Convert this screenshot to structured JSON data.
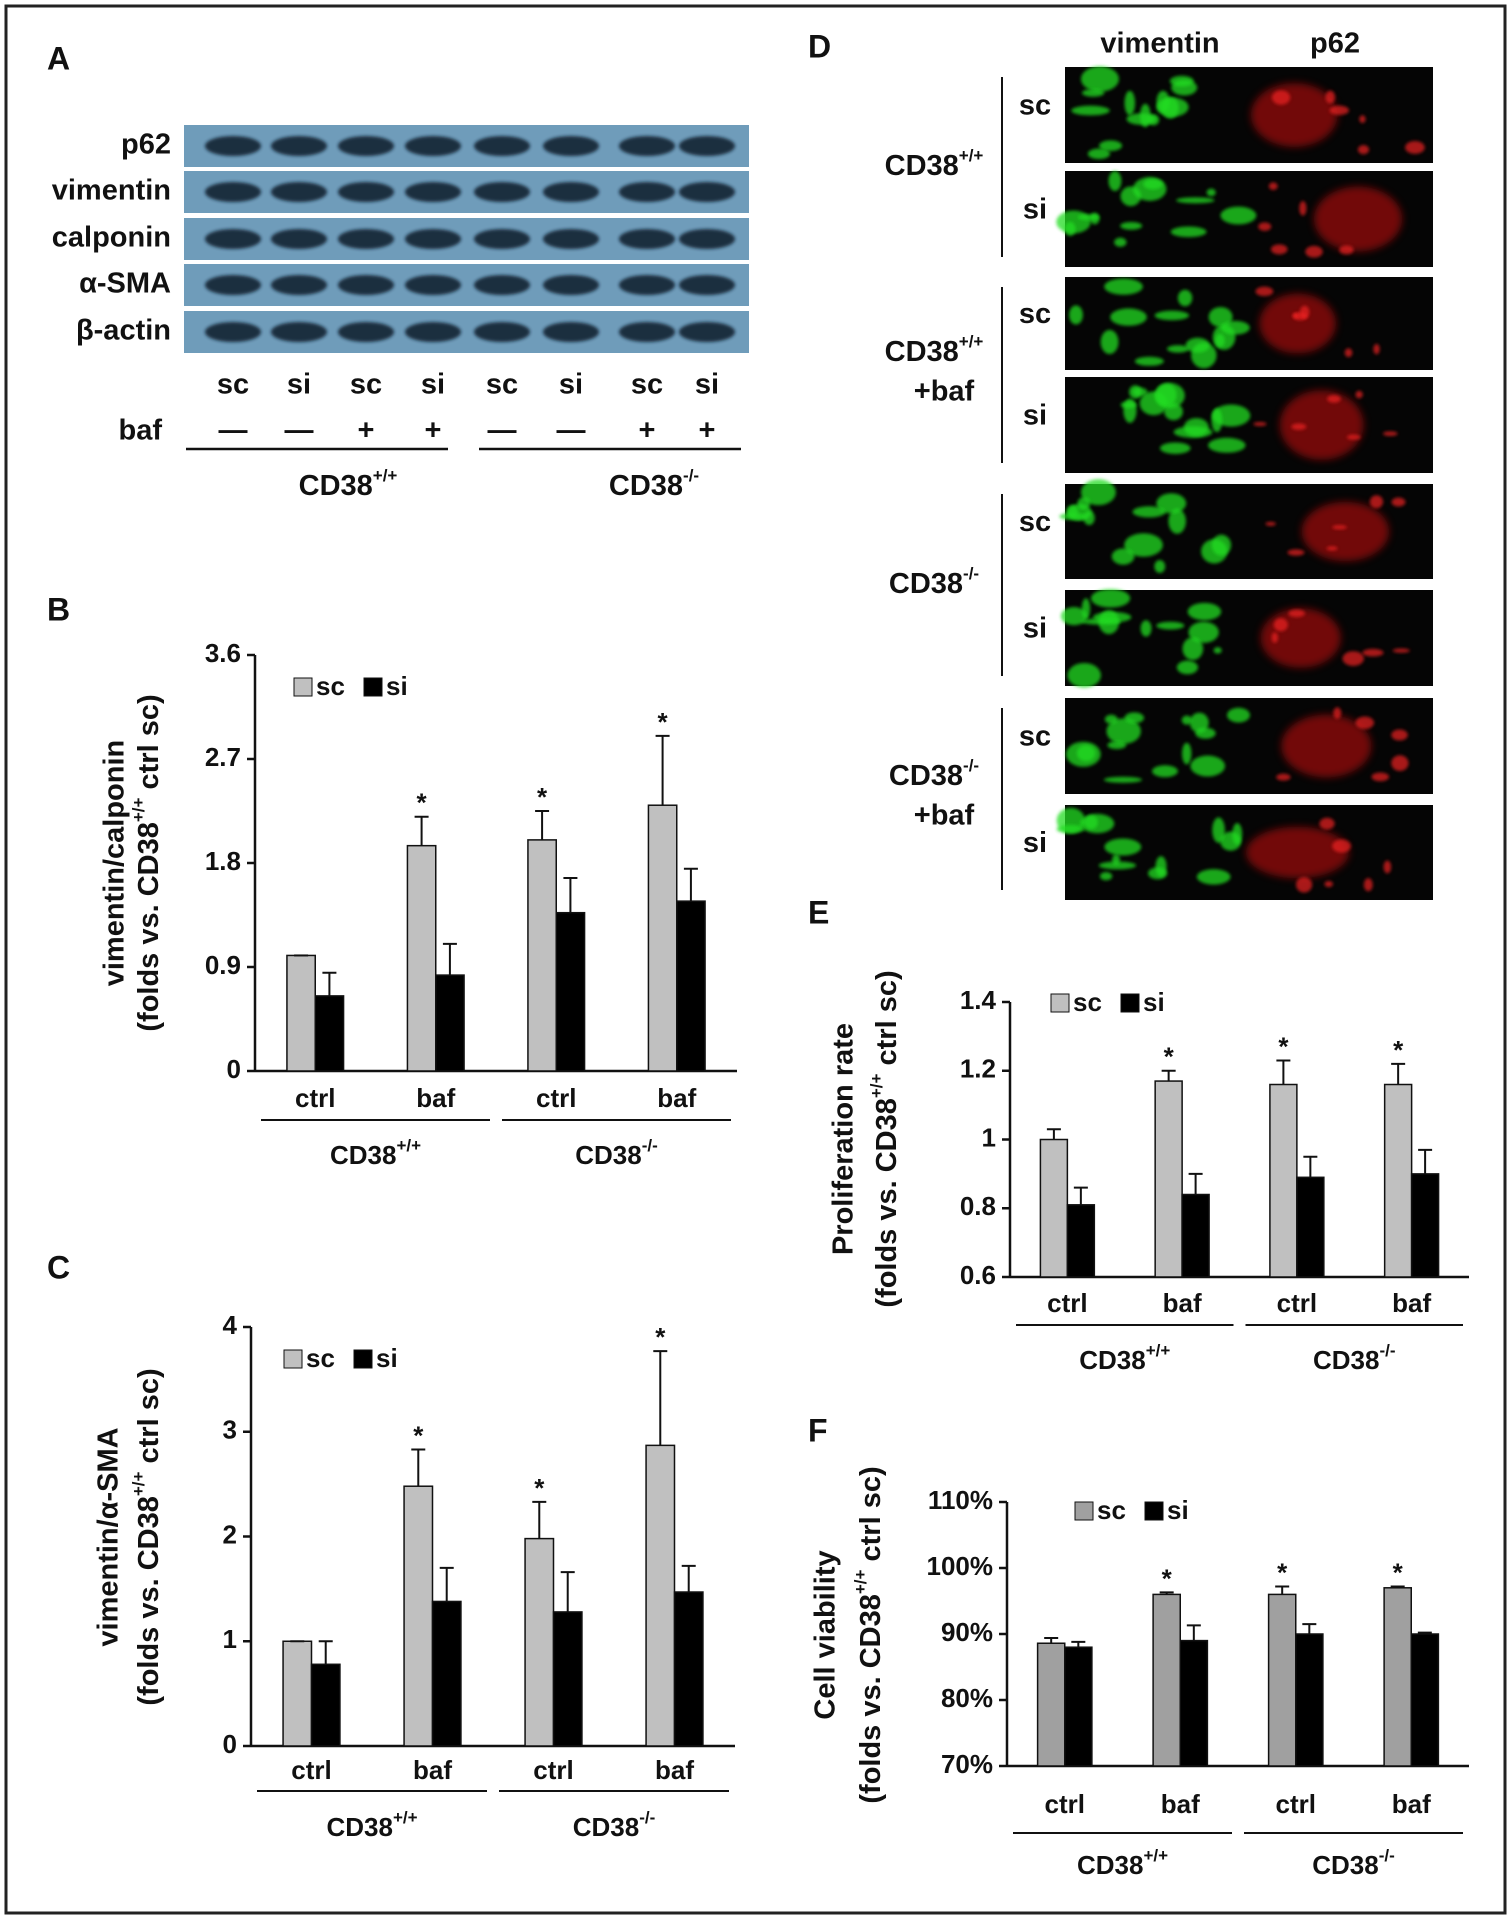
{
  "panel_a": {
    "label": "A",
    "rows": [
      "p62",
      "vimentin",
      "calponin",
      "α-SMA",
      "β-actin"
    ],
    "lanes": [
      "sc",
      "si",
      "sc",
      "si",
      "sc",
      "si",
      "sc",
      "si"
    ],
    "baf_label": "baf",
    "baf": [
      "—",
      "—",
      "+",
      "+",
      "—",
      "—",
      "+",
      "+"
    ],
    "groups": [
      {
        "name": "CD38",
        "sup": "+/+"
      },
      {
        "name": "CD38",
        "sup": "-/-"
      }
    ]
  },
  "panel_d": {
    "label": "D",
    "columns": [
      "vimentin",
      "p62"
    ],
    "groups": [
      {
        "name": "CD38",
        "sup": "+/+",
        "rows": [
          "sc",
          "si"
        ]
      },
      {
        "name": "CD38",
        "sup": "+/+",
        "note": "+baf",
        "rows": [
          "sc",
          "si"
        ]
      },
      {
        "name": "CD38",
        "sup": "-/-",
        "rows": [
          "sc",
          "si"
        ]
      },
      {
        "name": "CD38",
        "sup": "-/-",
        "note": "+baf",
        "rows": [
          "sc",
          "si"
        ]
      }
    ]
  },
  "chart_data": [
    {
      "type": "bar",
      "panel": "B",
      "y_label": [
        "vimentin/calponin",
        [
          "(folds vs. CD38",
          "+/+",
          " ctrl sc)"
        ]
      ],
      "categories": [
        "ctrl",
        "baf",
        "ctrl",
        "baf"
      ],
      "groups": [
        {
          "name": "CD38",
          "sup": "+/+"
        },
        {
          "name": "CD38",
          "sup": "-/-"
        }
      ],
      "ylim": [
        0,
        3.6
      ],
      "yticks": [
        0,
        0.9,
        1.8,
        2.7,
        3.6
      ],
      "series": [
        {
          "name": "sc",
          "color": "#c0c0c0",
          "values": [
            1.0,
            1.95,
            2.0,
            2.3
          ],
          "errors": [
            0,
            0.25,
            0.25,
            0.6
          ],
          "significance": [
            null,
            "*",
            "*",
            "*"
          ]
        },
        {
          "name": "si",
          "color": "#000000",
          "values": [
            0.65,
            0.83,
            1.37,
            1.47
          ],
          "errors": [
            0.2,
            0.27,
            0.3,
            0.28
          ]
        }
      ]
    },
    {
      "type": "bar",
      "panel": "C",
      "y_label": [
        "vimentin/α-SMA",
        [
          "(folds vs. CD38",
          "+/+",
          " ctrl sc)"
        ]
      ],
      "categories": [
        "ctrl",
        "baf",
        "ctrl",
        "baf"
      ],
      "groups": [
        {
          "name": "CD38",
          "sup": "+/+"
        },
        {
          "name": "CD38",
          "sup": "-/-"
        }
      ],
      "ylim": [
        0,
        4
      ],
      "yticks": [
        0,
        1,
        2,
        3,
        4
      ],
      "series": [
        {
          "name": "sc",
          "color": "#c0c0c0",
          "values": [
            1.0,
            2.48,
            1.98,
            2.87
          ],
          "errors": [
            0,
            0.35,
            0.35,
            0.9
          ],
          "significance": [
            null,
            "*",
            "*",
            "*"
          ]
        },
        {
          "name": "si",
          "color": "#000000",
          "values": [
            0.78,
            1.38,
            1.28,
            1.47
          ],
          "errors": [
            0.22,
            0.32,
            0.38,
            0.25
          ]
        }
      ]
    },
    {
      "type": "bar",
      "panel": "E",
      "y_label": [
        "Proliferation rate",
        [
          "(folds vs. CD38",
          "+/+",
          " ctrl sc)"
        ]
      ],
      "categories": [
        "ctrl",
        "baf",
        "ctrl",
        "baf"
      ],
      "groups": [
        {
          "name": "CD38",
          "sup": "+/+"
        },
        {
          "name": "CD38",
          "sup": "-/-"
        }
      ],
      "ylim": [
        0.6,
        1.4
      ],
      "yticks": [
        0.6,
        0.8,
        1,
        1.2,
        1.4
      ],
      "series": [
        {
          "name": "sc",
          "color": "#c0c0c0",
          "values": [
            1.0,
            1.17,
            1.16,
            1.16
          ],
          "errors": [
            0.03,
            0.03,
            0.07,
            0.06
          ],
          "significance": [
            null,
            "*",
            "*",
            "*"
          ]
        },
        {
          "name": "si",
          "color": "#000000",
          "values": [
            0.81,
            0.84,
            0.89,
            0.9
          ],
          "errors": [
            0.05,
            0.06,
            0.06,
            0.07
          ]
        }
      ]
    },
    {
      "type": "bar",
      "panel": "F",
      "y_label": [
        "Cell viability",
        [
          "(folds vs. CD38",
          "+/+",
          " ctrl sc)"
        ]
      ],
      "categories": [
        "ctrl",
        "baf",
        "ctrl",
        "baf"
      ],
      "groups": [
        {
          "name": "CD38",
          "sup": "+/+"
        },
        {
          "name": "CD38",
          "sup": "-/-"
        }
      ],
      "ylim": [
        70,
        110
      ],
      "yticks": [
        {
          "value": 70,
          "label": "70%"
        },
        {
          "value": 80,
          "label": "80%"
        },
        {
          "value": 90,
          "label": "90%"
        },
        {
          "value": 100,
          "label": "100%"
        },
        {
          "value": 110,
          "label": "110%"
        }
      ],
      "series": [
        {
          "name": "sc",
          "color": "#a0a0a0",
          "values": [
            88.6,
            96,
            96,
            97
          ],
          "errors": [
            0.8,
            0.3,
            1.2,
            0.2
          ],
          "significance": [
            null,
            "*",
            "*",
            "*"
          ]
        },
        {
          "name": "si",
          "color": "#000000",
          "values": [
            88,
            89,
            90,
            90
          ],
          "errors": [
            0.8,
            2.3,
            1.5,
            0.2
          ]
        }
      ]
    }
  ]
}
